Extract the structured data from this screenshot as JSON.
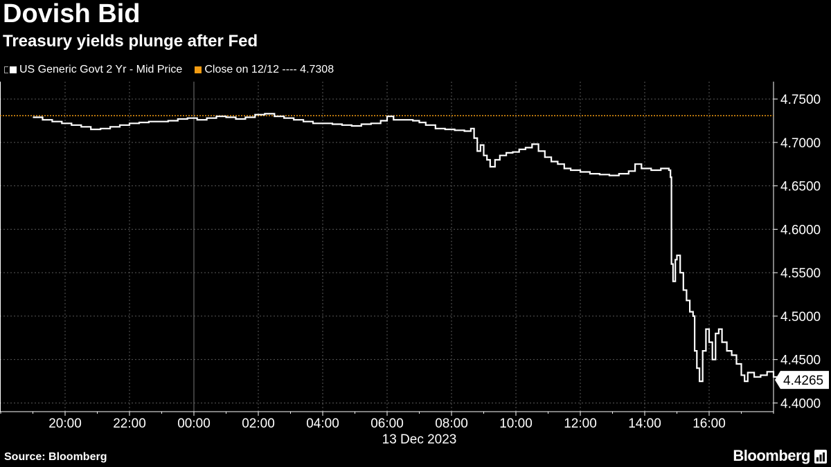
{
  "header": {
    "title": "Dovish Bid",
    "subtitle": "Treasury yields plunge after Fed"
  },
  "legend": {
    "items": [
      {
        "label": "US Generic Govt 2 Yr - Mid Price",
        "color": "#ffffff"
      },
      {
        "label": "Close on 12/12 ---- 4.7308",
        "color": "#f39c12"
      }
    ]
  },
  "footer": {
    "source": "Source: Bloomberg",
    "brand": "Bloomberg"
  },
  "chart_data": {
    "type": "line",
    "x_tick_labels": [
      "20:00",
      "22:00",
      "00:00",
      "02:00",
      "04:00",
      "06:00",
      "08:00",
      "10:00",
      "12:00",
      "14:00",
      "16:00"
    ],
    "x_tick_hours": [
      20,
      22,
      24,
      26,
      28,
      30,
      32,
      34,
      36,
      38,
      40
    ],
    "date_label": "13 Dec 2023",
    "x_range_hours": [
      18,
      42
    ],
    "y_tick_labels": [
      "4.4000",
      "4.4500",
      "4.5000",
      "4.5500",
      "4.6000",
      "4.6500",
      "4.7000",
      "4.7500"
    ],
    "y_ticks": [
      4.4,
      4.45,
      4.5,
      4.55,
      4.6,
      4.65,
      4.7,
      4.75
    ],
    "ylim": [
      4.39,
      4.77
    ],
    "grid": true,
    "legend_position": "top-left",
    "reference_line": {
      "name": "Close on 12/12",
      "value": 4.7308,
      "color": "#f39c12"
    },
    "last_value_label": "4.4265",
    "series": [
      {
        "name": "US Generic Govt 2 Yr - Mid Price",
        "color": "#ffffff",
        "points": [
          [
            19.0,
            4.729
          ],
          [
            19.3,
            4.726
          ],
          [
            19.6,
            4.724
          ],
          [
            19.9,
            4.722
          ],
          [
            20.2,
            4.72
          ],
          [
            20.5,
            4.718
          ],
          [
            20.8,
            4.715
          ],
          [
            21.1,
            4.716
          ],
          [
            21.4,
            4.718
          ],
          [
            21.7,
            4.72
          ],
          [
            22.0,
            4.722
          ],
          [
            22.3,
            4.723
          ],
          [
            22.6,
            4.724
          ],
          [
            22.9,
            4.724
          ],
          [
            23.2,
            4.725
          ],
          [
            23.5,
            4.727
          ],
          [
            23.8,
            4.728
          ],
          [
            24.1,
            4.726
          ],
          [
            24.4,
            4.728
          ],
          [
            24.7,
            4.73
          ],
          [
            25.0,
            4.729
          ],
          [
            25.3,
            4.727
          ],
          [
            25.6,
            4.729
          ],
          [
            25.9,
            4.732
          ],
          [
            26.2,
            4.733
          ],
          [
            26.5,
            4.73
          ],
          [
            26.8,
            4.728
          ],
          [
            27.1,
            4.726
          ],
          [
            27.4,
            4.724
          ],
          [
            27.7,
            4.722
          ],
          [
            28.0,
            4.722
          ],
          [
            28.3,
            4.721
          ],
          [
            28.6,
            4.72
          ],
          [
            28.9,
            4.719
          ],
          [
            29.2,
            4.721
          ],
          [
            29.5,
            4.722
          ],
          [
            29.8,
            4.725
          ],
          [
            30.0,
            4.73
          ],
          [
            30.2,
            4.726
          ],
          [
            30.5,
            4.726
          ],
          [
            30.8,
            4.725
          ],
          [
            31.0,
            4.723
          ],
          [
            31.2,
            4.72
          ],
          [
            31.5,
            4.716
          ],
          [
            31.8,
            4.715
          ],
          [
            32.1,
            4.714
          ],
          [
            32.4,
            4.713
          ],
          [
            32.6,
            4.716
          ],
          [
            32.7,
            4.705
          ],
          [
            32.8,
            4.69
          ],
          [
            32.9,
            4.697
          ],
          [
            33.0,
            4.685
          ],
          [
            33.1,
            4.68
          ],
          [
            33.2,
            4.672
          ],
          [
            33.35,
            4.68
          ],
          [
            33.5,
            4.685
          ],
          [
            33.7,
            4.688
          ],
          [
            33.9,
            4.689
          ],
          [
            34.1,
            4.692
          ],
          [
            34.3,
            4.694
          ],
          [
            34.5,
            4.698
          ],
          [
            34.7,
            4.69
          ],
          [
            34.9,
            4.683
          ],
          [
            35.1,
            4.678
          ],
          [
            35.3,
            4.675
          ],
          [
            35.5,
            4.67
          ],
          [
            35.7,
            4.668
          ],
          [
            36.0,
            4.666
          ],
          [
            36.3,
            4.664
          ],
          [
            36.6,
            4.663
          ],
          [
            36.9,
            4.662
          ],
          [
            37.2,
            4.664
          ],
          [
            37.5,
            4.667
          ],
          [
            37.7,
            4.675
          ],
          [
            37.9,
            4.67
          ],
          [
            38.2,
            4.668
          ],
          [
            38.5,
            4.67
          ],
          [
            38.75,
            4.668
          ],
          [
            38.8,
            4.66
          ],
          [
            38.83,
            4.56
          ],
          [
            38.88,
            4.54
          ],
          [
            38.95,
            4.565
          ],
          [
            39.0,
            4.57
          ],
          [
            39.1,
            4.55
          ],
          [
            39.2,
            4.53
          ],
          [
            39.3,
            4.518
          ],
          [
            39.4,
            4.505
          ],
          [
            39.5,
            4.5
          ],
          [
            39.55,
            4.46
          ],
          [
            39.62,
            4.44
          ],
          [
            39.7,
            4.425
          ],
          [
            39.8,
            4.46
          ],
          [
            39.9,
            4.485
          ],
          [
            40.0,
            4.47
          ],
          [
            40.1,
            4.45
          ],
          [
            40.2,
            4.48
          ],
          [
            40.3,
            4.485
          ],
          [
            40.4,
            4.47
          ],
          [
            40.55,
            4.46
          ],
          [
            40.7,
            4.455
          ],
          [
            40.85,
            4.445
          ],
          [
            41.0,
            4.432
          ],
          [
            41.1,
            4.425
          ],
          [
            41.2,
            4.435
          ],
          [
            41.4,
            4.43
          ],
          [
            41.6,
            4.432
          ],
          [
            41.8,
            4.436
          ],
          [
            42.0,
            4.43
          ],
          [
            42.3,
            4.427
          ],
          [
            42.55,
            4.4265
          ]
        ]
      }
    ]
  }
}
